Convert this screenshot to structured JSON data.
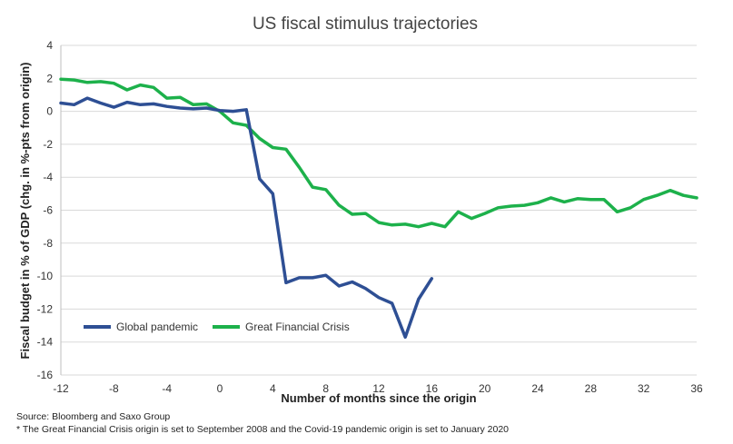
{
  "chart_data": {
    "type": "line",
    "title": "US fiscal stimulus trajectories",
    "xlabel": "Number of months since the origin",
    "ylabel": "Fiscal budget in % of GDP (chg. in %-pts from origin)",
    "xlim": [
      -12,
      36
    ],
    "ylim": [
      -16,
      4
    ],
    "x_ticks": [
      -12,
      -8,
      -4,
      0,
      4,
      8,
      12,
      16,
      20,
      24,
      28,
      32,
      36
    ],
    "y_ticks": [
      4,
      2,
      0,
      -2,
      -4,
      -6,
      -8,
      -10,
      -12,
      -14,
      -16
    ],
    "grid": "horizontal",
    "legend": "lower-left",
    "series": [
      {
        "name": "Global pandemic",
        "color": "#2e4f94",
        "x": [
          -12,
          -11,
          -10,
          -9,
          -8,
          -7,
          -6,
          -5,
          -4,
          -3,
          -2,
          -1,
          0,
          1,
          2,
          3,
          4,
          5,
          6,
          7,
          8,
          9,
          10,
          11,
          12,
          13,
          14,
          15,
          16
        ],
        "y": [
          0.5,
          0.4,
          0.8,
          0.5,
          0.25,
          0.55,
          0.4,
          0.45,
          0.3,
          0.2,
          0.15,
          0.2,
          0.05,
          0.0,
          0.1,
          -4.1,
          -5.0,
          -10.4,
          -10.1,
          -10.1,
          -9.95,
          -10.6,
          -10.35,
          -10.75,
          -11.3,
          -11.65,
          -13.7,
          -11.4,
          -10.15
        ]
      },
      {
        "name": "Great Financial Crisis",
        "color": "#1db14b",
        "x": [
          -12,
          -11,
          -10,
          -9,
          -8,
          -7,
          -6,
          -5,
          -4,
          -3,
          -2,
          -1,
          0,
          1,
          2,
          3,
          4,
          5,
          6,
          7,
          8,
          9,
          10,
          11,
          12,
          13,
          14,
          15,
          16,
          17,
          18,
          19,
          20,
          21,
          22,
          23,
          24,
          25,
          26,
          27,
          28,
          29,
          30,
          31,
          32,
          33,
          34,
          35,
          36
        ],
        "y": [
          1.95,
          1.9,
          1.75,
          1.8,
          1.7,
          1.3,
          1.6,
          1.45,
          0.8,
          0.85,
          0.4,
          0.45,
          0.0,
          -0.7,
          -0.85,
          -1.65,
          -2.2,
          -2.3,
          -3.4,
          -4.6,
          -4.75,
          -5.7,
          -6.25,
          -6.2,
          -6.75,
          -6.9,
          -6.85,
          -7.0,
          -6.8,
          -7.0,
          -6.1,
          -6.5,
          -6.2,
          -5.85,
          -5.75,
          -5.7,
          -5.55,
          -5.25,
          -5.5,
          -5.3,
          -5.35,
          -5.35,
          -6.1,
          -5.85,
          -5.35,
          -5.1,
          -4.8,
          -5.1,
          -5.25
        ]
      }
    ]
  },
  "notes": {
    "source": "Source: Bloomberg and Saxo Group",
    "footnote": "* The Great Financial Crisis origin is set to September 2008 and the Covid-19 pandemic origin is set to January 2020"
  }
}
